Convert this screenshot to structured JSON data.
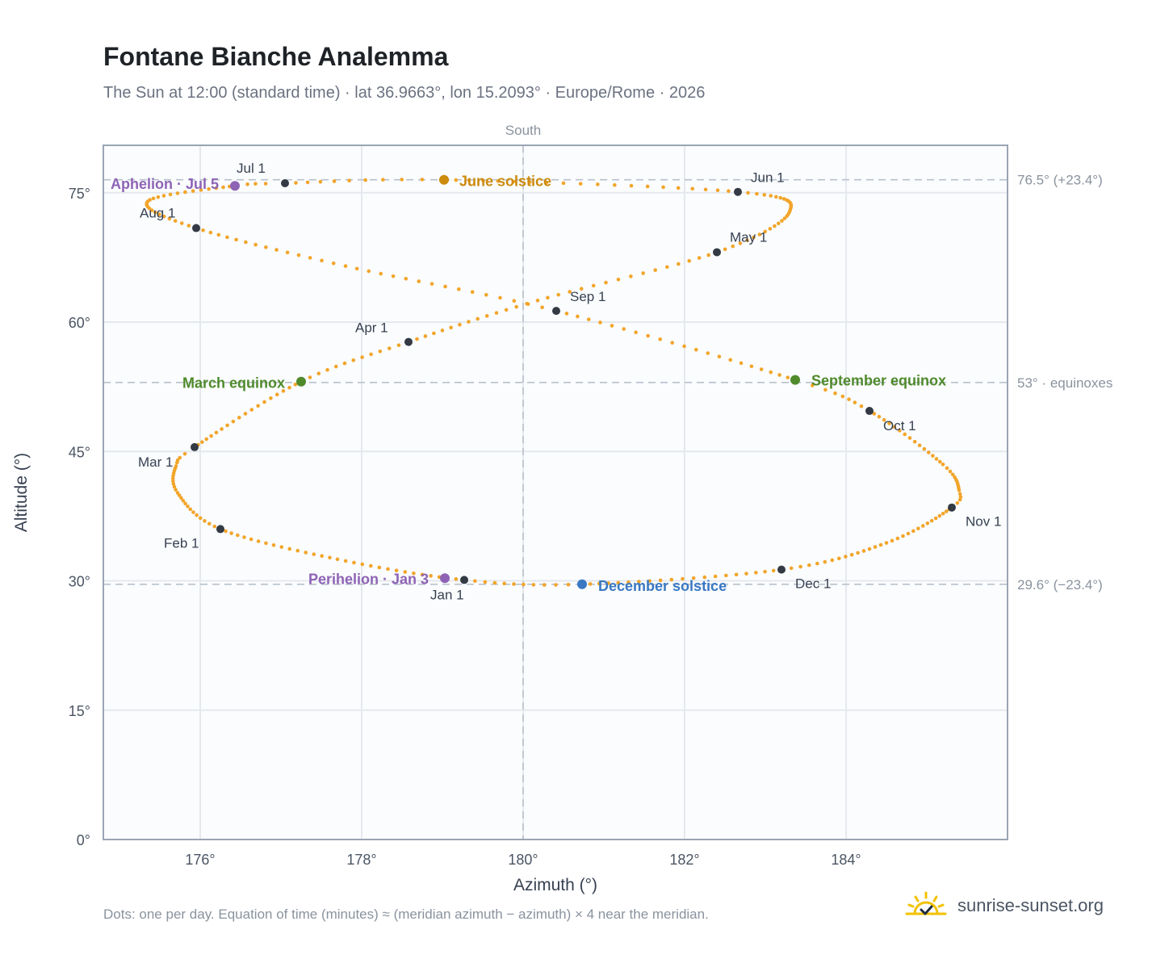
{
  "title": "Fontane Bianche Analemma",
  "subtitle": "The Sun at 12:00 (standard time) · lat 36.9663°, lon 15.2093° · Europe/Rome · 2026",
  "footer": "Dots: one per day. Equation of time (minutes) ≈ (meridian azimuth − azimuth) × 4 near the meridian.",
  "brand": {
    "name": "sunrise-sunset.org",
    "icon": "sun-checkmark-logo-icon"
  },
  "colors": {
    "curve": "#f2a52a",
    "month_dot": "#333a44",
    "june_solstice": "#cc8a0e",
    "december_solstice": "#3a78c3",
    "equinox": "#4f8a2b",
    "aphelion_perihelion": "#8e63b5",
    "grid": "#e5e9ee",
    "frame": "#9aa5b3",
    "plot_bg": "#fafcfe"
  },
  "chart_data": {
    "type": "scatter",
    "xlabel": "Azimuth (°)",
    "ylabel": "Altitude (°)",
    "xlim": [
      174.8,
      186.0
    ],
    "ylim": [
      0,
      80.5
    ],
    "x_ticks": [
      176,
      178,
      180,
      182,
      184
    ],
    "x_tick_labels": [
      "176°",
      "178°",
      "180°",
      "182°",
      "184°"
    ],
    "y_ticks": [
      0,
      15,
      30,
      45,
      60,
      75
    ],
    "y_tick_labels": [
      "0°",
      "15°",
      "30°",
      "45°",
      "60°",
      "75°"
    ],
    "grid": true,
    "meridian": {
      "azimuth": 180,
      "label": "South"
    },
    "reference_lines": [
      {
        "altitude": 76.5,
        "label": "76.5° (+23.4°)"
      },
      {
        "altitude": 53.0,
        "label": "53° · equinoxes"
      },
      {
        "altitude": 29.6,
        "label": "29.6° (−23.4°)"
      }
    ],
    "month_markers": [
      {
        "label": "Jan 1",
        "az": 179.27,
        "alt": 30.1
      },
      {
        "label": "Feb 1",
        "az": 176.25,
        "alt": 36.0
      },
      {
        "label": "Mar 1",
        "az": 175.93,
        "alt": 45.5
      },
      {
        "label": "Apr 1",
        "az": 178.58,
        "alt": 57.7
      },
      {
        "label": "May 1",
        "az": 182.4,
        "alt": 68.1
      },
      {
        "label": "Jun 1",
        "az": 182.66,
        "alt": 75.1
      },
      {
        "label": "Jul 1",
        "az": 177.05,
        "alt": 76.1
      },
      {
        "label": "Aug 1",
        "az": 175.95,
        "alt": 70.9
      },
      {
        "label": "Sep 1",
        "az": 180.41,
        "alt": 61.3
      },
      {
        "label": "Oct 1",
        "az": 184.29,
        "alt": 49.7
      },
      {
        "label": "Nov 1",
        "az": 185.31,
        "alt": 38.5
      },
      {
        "label": "Dec 1",
        "az": 183.2,
        "alt": 31.3
      }
    ],
    "events": [
      {
        "label": "June solstice",
        "az": 179.02,
        "alt": 76.5,
        "color_key": "june_solstice"
      },
      {
        "label": "December solstice",
        "az": 180.73,
        "alt": 29.6,
        "color_key": "december_solstice"
      },
      {
        "label": "March equinox",
        "az": 177.25,
        "alt": 53.1,
        "color_key": "equinox"
      },
      {
        "label": "September equinox",
        "az": 183.37,
        "alt": 53.3,
        "color_key": "equinox"
      },
      {
        "label": "Aphelion · Jul 5",
        "az": 176.43,
        "alt": 75.8,
        "color_key": "aphelion_perihelion"
      },
      {
        "label": "Perihelion · Jan 3",
        "az": 179.03,
        "alt": 30.3,
        "color_key": "aphelion_perihelion"
      }
    ],
    "curve_anchor_points": [
      {
        "day": 1,
        "az": 179.27,
        "alt": 30.1
      },
      {
        "day": 16,
        "az": 177.7,
        "alt": 32.5
      },
      {
        "day": 32,
        "az": 176.25,
        "alt": 36.0
      },
      {
        "day": 45,
        "az": 175.72,
        "alt": 40.2
      },
      {
        "day": 55,
        "az": 175.7,
        "alt": 43.3
      },
      {
        "day": 60,
        "az": 175.93,
        "alt": 45.5
      },
      {
        "day": 79,
        "az": 177.25,
        "alt": 53.1
      },
      {
        "day": 91,
        "az": 178.58,
        "alt": 57.7
      },
      {
        "day": 105,
        "az": 180.18,
        "alt": 62.5
      },
      {
        "day": 121,
        "az": 182.4,
        "alt": 68.1
      },
      {
        "day": 136,
        "az": 183.3,
        "alt": 72.8
      },
      {
        "day": 152,
        "az": 182.66,
        "alt": 75.1
      },
      {
        "day": 172,
        "az": 179.02,
        "alt": 76.5
      },
      {
        "day": 182,
        "az": 177.05,
        "alt": 76.1
      },
      {
        "day": 186,
        "az": 176.43,
        "alt": 75.8
      },
      {
        "day": 200,
        "az": 175.35,
        "alt": 74.0
      },
      {
        "day": 213,
        "az": 175.95,
        "alt": 70.9
      },
      {
        "day": 228,
        "az": 177.8,
        "alt": 66.5
      },
      {
        "day": 244,
        "az": 180.41,
        "alt": 61.3
      },
      {
        "day": 266,
        "az": 183.37,
        "alt": 53.3
      },
      {
        "day": 274,
        "az": 184.29,
        "alt": 49.7
      },
      {
        "day": 290,
        "az": 185.2,
        "alt": 43.5
      },
      {
        "day": 300,
        "az": 185.4,
        "alt": 40.5
      },
      {
        "day": 305,
        "az": 185.31,
        "alt": 38.5
      },
      {
        "day": 320,
        "az": 184.5,
        "alt": 34.4
      },
      {
        "day": 335,
        "az": 183.2,
        "alt": 31.3
      },
      {
        "day": 355,
        "az": 180.73,
        "alt": 29.6
      },
      {
        "day": 366,
        "az": 179.27,
        "alt": 30.1
      }
    ]
  }
}
